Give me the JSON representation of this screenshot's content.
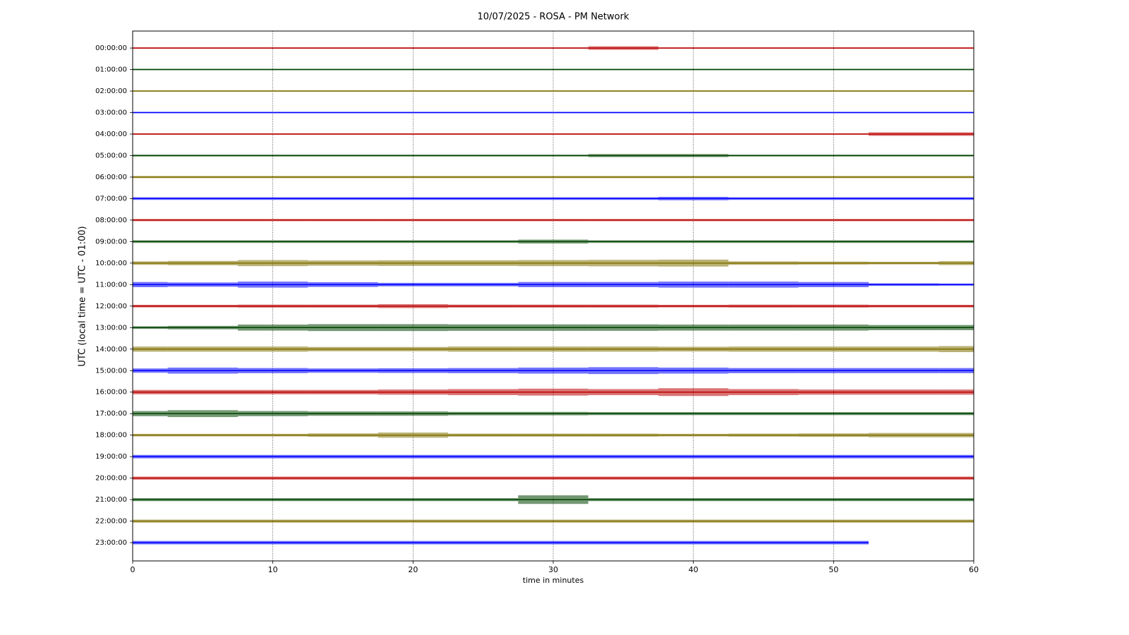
{
  "chart_data": {
    "type": "helicorder",
    "title": "10/07/2025 - ROSA - PM Network",
    "xlabel": "time in minutes",
    "ylabel": "UTC (local time = UTC - 01:00)",
    "xlim": [
      0,
      60
    ],
    "xticks": [
      0,
      10,
      20,
      30,
      40,
      50,
      60
    ],
    "grid": true,
    "categories": [
      "00:00:00",
      "01:00:00",
      "02:00:00",
      "03:00:00",
      "04:00:00",
      "05:00:00",
      "06:00:00",
      "07:00:00",
      "08:00:00",
      "09:00:00",
      "10:00:00",
      "11:00:00",
      "12:00:00",
      "13:00:00",
      "14:00:00",
      "15:00:00",
      "16:00:00",
      "17:00:00",
      "18:00:00",
      "19:00:00",
      "20:00:00",
      "21:00:00",
      "22:00:00",
      "23:00:00"
    ],
    "x": [
      0,
      5,
      10,
      15,
      20,
      25,
      30,
      35,
      40,
      45,
      50,
      55,
      60
    ],
    "rows": [
      {
        "color": "#bb0000",
        "values": [
          0.03,
          0.03,
          0.03,
          0.03,
          0.03,
          0.03,
          0.03,
          0.08,
          0.03,
          0.03,
          0.03,
          0.03,
          0.03
        ]
      },
      {
        "color": "#004400",
        "values": [
          0.03,
          0.03,
          0.03,
          0.03,
          0.03,
          0.03,
          0.03,
          0.03,
          0.03,
          0.03,
          0.03,
          0.03,
          0.03
        ]
      },
      {
        "color": "#807000",
        "values": [
          0.03,
          0.03,
          0.03,
          0.03,
          0.03,
          0.03,
          0.03,
          0.03,
          0.03,
          0.03,
          0.03,
          0.03,
          0.03
        ]
      },
      {
        "color": "#0000ff",
        "values": [
          0.03,
          0.03,
          0.03,
          0.03,
          0.03,
          0.03,
          0.03,
          0.03,
          0.03,
          0.03,
          0.03,
          0.03,
          0.03
        ]
      },
      {
        "color": "#bb0000",
        "values": [
          0.03,
          0.03,
          0.03,
          0.03,
          0.03,
          0.03,
          0.03,
          0.03,
          0.03,
          0.03,
          0.03,
          0.08,
          0.08
        ]
      },
      {
        "color": "#004400",
        "values": [
          0.04,
          0.04,
          0.04,
          0.04,
          0.04,
          0.04,
          0.04,
          0.07,
          0.07,
          0.04,
          0.04,
          0.04,
          0.04
        ]
      },
      {
        "color": "#807000",
        "values": [
          0.05,
          0.05,
          0.05,
          0.05,
          0.05,
          0.05,
          0.05,
          0.05,
          0.05,
          0.05,
          0.05,
          0.05,
          0.05
        ]
      },
      {
        "color": "#0000ff",
        "values": [
          0.06,
          0.06,
          0.06,
          0.06,
          0.06,
          0.06,
          0.06,
          0.06,
          0.08,
          0.06,
          0.06,
          0.06,
          0.06
        ]
      },
      {
        "color": "#bb0000",
        "values": [
          0.05,
          0.05,
          0.05,
          0.05,
          0.05,
          0.05,
          0.05,
          0.05,
          0.05,
          0.05,
          0.05,
          0.05,
          0.05
        ]
      },
      {
        "color": "#004400",
        "values": [
          0.06,
          0.06,
          0.06,
          0.06,
          0.06,
          0.06,
          0.09,
          0.06,
          0.06,
          0.06,
          0.06,
          0.06,
          0.06
        ]
      },
      {
        "color": "#807000",
        "values": [
          0.08,
          0.1,
          0.14,
          0.12,
          0.13,
          0.13,
          0.14,
          0.15,
          0.16,
          0.08,
          0.07,
          0.06,
          0.09
        ]
      },
      {
        "color": "#0000ff",
        "values": [
          0.12,
          0.1,
          0.14,
          0.11,
          0.08,
          0.08,
          0.12,
          0.12,
          0.14,
          0.14,
          0.12,
          0.06,
          0.05
        ]
      },
      {
        "color": "#bb0000",
        "values": [
          0.06,
          0.06,
          0.07,
          0.07,
          0.09,
          0.07,
          0.07,
          0.07,
          0.06,
          0.07,
          0.07,
          0.06,
          0.06
        ]
      },
      {
        "color": "#004400",
        "values": [
          0.06,
          0.08,
          0.14,
          0.16,
          0.16,
          0.15,
          0.15,
          0.15,
          0.14,
          0.14,
          0.14,
          0.12,
          0.12
        ]
      },
      {
        "color": "#807000",
        "values": [
          0.12,
          0.12,
          0.12,
          0.1,
          0.1,
          0.12,
          0.12,
          0.12,
          0.11,
          0.12,
          0.12,
          0.12,
          0.14
        ]
      },
      {
        "color": "#0000ff",
        "values": [
          0.1,
          0.14,
          0.12,
          0.1,
          0.11,
          0.12,
          0.14,
          0.16,
          0.14,
          0.12,
          0.12,
          0.12,
          0.12
        ]
      },
      {
        "color": "#bb0000",
        "values": [
          0.1,
          0.1,
          0.1,
          0.1,
          0.12,
          0.14,
          0.16,
          0.14,
          0.18,
          0.14,
          0.12,
          0.12,
          0.12
        ]
      },
      {
        "color": "#004400",
        "values": [
          0.12,
          0.16,
          0.12,
          0.1,
          0.1,
          0.08,
          0.08,
          0.07,
          0.07,
          0.07,
          0.07,
          0.07,
          0.07
        ]
      },
      {
        "color": "#807000",
        "values": [
          0.06,
          0.06,
          0.06,
          0.08,
          0.12,
          0.07,
          0.07,
          0.07,
          0.06,
          0.07,
          0.08,
          0.1,
          0.1
        ]
      },
      {
        "color": "#0000ff",
        "values": [
          0.08,
          0.08,
          0.08,
          0.08,
          0.08,
          0.08,
          0.08,
          0.08,
          0.08,
          0.08,
          0.08,
          0.08,
          0.08
        ]
      },
      {
        "color": "#bb0000",
        "values": [
          0.07,
          0.07,
          0.07,
          0.07,
          0.07,
          0.07,
          0.07,
          0.07,
          0.07,
          0.07,
          0.07,
          0.07,
          0.07
        ]
      },
      {
        "color": "#004400",
        "values": [
          0.07,
          0.07,
          0.07,
          0.07,
          0.07,
          0.07,
          0.2,
          0.07,
          0.07,
          0.07,
          0.07,
          0.07,
          0.07
        ]
      },
      {
        "color": "#807000",
        "values": [
          0.07,
          0.07,
          0.07,
          0.07,
          0.07,
          0.07,
          0.07,
          0.07,
          0.07,
          0.07,
          0.07,
          0.07,
          0.07
        ]
      },
      {
        "color": "#0000ff",
        "values": [
          0.08,
          0.08,
          0.08,
          0.08,
          0.08,
          0.08,
          0.08,
          0.08,
          0.08,
          0.08,
          0.08,
          null,
          null
        ]
      }
    ]
  }
}
